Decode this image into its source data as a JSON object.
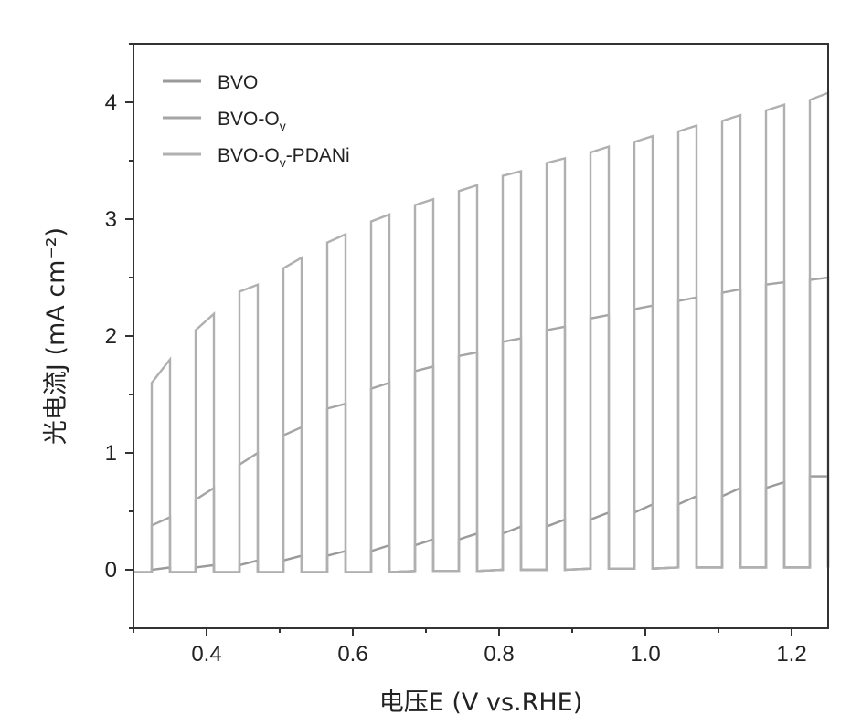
{
  "chart_data": {
    "type": "line",
    "xlabel": "电压E (V vs.RHE)",
    "ylabel": "光电流J (mA cm⁻²)",
    "xlim": [
      0.3,
      1.25
    ],
    "ylim": [
      -0.5,
      4.5
    ],
    "xticks": [
      "0.4",
      "0.6",
      "0.8",
      "1.0",
      "1.2"
    ],
    "yticks": [
      "0",
      "1",
      "2",
      "3",
      "4"
    ],
    "grid": false,
    "legend_position": "top-left",
    "chopping": {
      "light_on_segments": [
        [
          0.325,
          0.35
        ],
        [
          0.385,
          0.41
        ],
        [
          0.445,
          0.47
        ],
        [
          0.505,
          0.53
        ],
        [
          0.565,
          0.59
        ],
        [
          0.625,
          0.65
        ],
        [
          0.685,
          0.71
        ],
        [
          0.745,
          0.77
        ],
        [
          0.805,
          0.83
        ],
        [
          0.865,
          0.89
        ],
        [
          0.925,
          0.95
        ],
        [
          0.985,
          1.01
        ],
        [
          1.045,
          1.07
        ],
        [
          1.105,
          1.13
        ],
        [
          1.165,
          1.19
        ],
        [
          1.225,
          1.25
        ]
      ]
    },
    "series": [
      {
        "name": "BVO",
        "color": "#9a9a9a",
        "light_on": [
          [
            0.0,
            0.02
          ],
          [
            0.02,
            0.04
          ],
          [
            0.04,
            0.08
          ],
          [
            0.08,
            0.12
          ],
          [
            0.12,
            0.16
          ],
          [
            0.16,
            0.21
          ],
          [
            0.21,
            0.26
          ],
          [
            0.26,
            0.31
          ],
          [
            0.31,
            0.37
          ],
          [
            0.37,
            0.43
          ],
          [
            0.43,
            0.49
          ],
          [
            0.49,
            0.56
          ],
          [
            0.56,
            0.63
          ],
          [
            0.63,
            0.7
          ],
          [
            0.7,
            0.75
          ],
          [
            0.8,
            0.8
          ]
        ],
        "dark": [
          -0.02,
          -0.02,
          -0.02,
          -0.02,
          -0.02,
          -0.02,
          -0.01,
          -0.01,
          0.0,
          0.0,
          0.01,
          0.01,
          0.02,
          0.02,
          0.02,
          0.02
        ]
      },
      {
        "name": "BVO-Ov",
        "label_main": "BVO-O",
        "label_sub": "v",
        "color": "#a5a5a5",
        "light_on": [
          [
            0.38,
            0.45
          ],
          [
            0.6,
            0.7
          ],
          [
            0.9,
            1.0
          ],
          [
            1.15,
            1.22
          ],
          [
            1.38,
            1.42
          ],
          [
            1.55,
            1.6
          ],
          [
            1.7,
            1.74
          ],
          [
            1.83,
            1.86
          ],
          [
            1.95,
            1.98
          ],
          [
            2.05,
            2.08
          ],
          [
            2.15,
            2.18
          ],
          [
            2.23,
            2.26
          ],
          [
            2.3,
            2.33
          ],
          [
            2.37,
            2.4
          ],
          [
            2.44,
            2.46
          ],
          [
            2.48,
            2.5
          ]
        ],
        "dark": [
          -0.02,
          -0.02,
          -0.02,
          -0.02,
          -0.02,
          -0.02,
          -0.01,
          -0.01,
          0.0,
          0.0,
          0.01,
          0.01,
          0.02,
          0.02,
          0.02,
          0.02
        ]
      },
      {
        "name": "BVO-Ov-PDANi",
        "label_main": "BVO-O",
        "label_sub": "v",
        "label_tail": "-PDANi",
        "color": "#b0b0b0",
        "light_on": [
          [
            1.6,
            1.8
          ],
          [
            2.05,
            2.19
          ],
          [
            2.38,
            2.44
          ],
          [
            2.58,
            2.67
          ],
          [
            2.8,
            2.87
          ],
          [
            2.98,
            3.04
          ],
          [
            3.12,
            3.17
          ],
          [
            3.24,
            3.29
          ],
          [
            3.37,
            3.41
          ],
          [
            3.48,
            3.52
          ],
          [
            3.57,
            3.62
          ],
          [
            3.66,
            3.71
          ],
          [
            3.75,
            3.8
          ],
          [
            3.84,
            3.89
          ],
          [
            3.93,
            3.98
          ],
          [
            4.02,
            4.08
          ]
        ],
        "dark": [
          -0.02,
          -0.02,
          -0.02,
          -0.02,
          -0.02,
          -0.02,
          -0.01,
          -0.01,
          0.0,
          0.0,
          0.01,
          0.01,
          0.02,
          0.02,
          0.02,
          0.02
        ]
      }
    ]
  }
}
